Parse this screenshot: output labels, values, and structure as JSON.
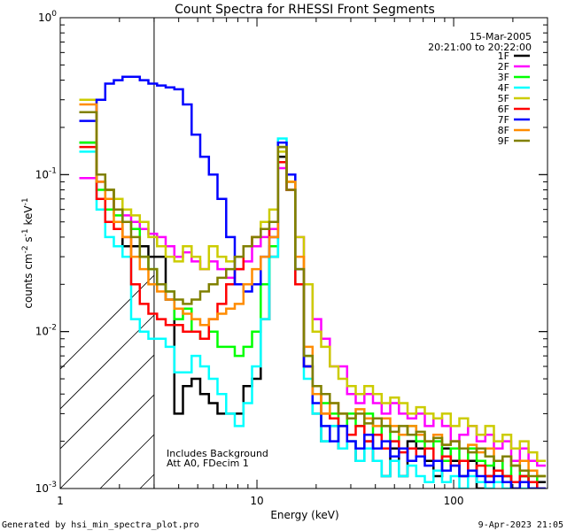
{
  "chart_data": {
    "type": "line",
    "title": "Count Spectra for RHESSI Front Segments",
    "xlabel": "Energy (keV)",
    "ylabel_parts": [
      "counts cm",
      "-2",
      " s",
      "-1",
      " keV",
      "-1"
    ],
    "x_scale": "log",
    "y_scale": "log",
    "xlim": [
      1,
      300
    ],
    "ylim": [
      0.001,
      1
    ],
    "x_ticks": [
      {
        "value": 1,
        "label": "1"
      },
      {
        "value": 10,
        "label": "10"
      },
      {
        "value": 100,
        "label": "100"
      }
    ],
    "y_ticks": [
      {
        "value": 0.001,
        "base": "10",
        "exp": "-3"
      },
      {
        "value": 0.01,
        "base": "10",
        "exp": "-2"
      },
      {
        "value": 0.1,
        "base": "10",
        "exp": "-1"
      },
      {
        "value": 1,
        "base": "10",
        "exp": "0"
      }
    ],
    "date_label": "15-Mar-2005",
    "time_label": "20:21:00 to 20:22:00",
    "note_lines": [
      "Includes Background",
      "Att A0, FDecim 1"
    ],
    "excluded_region_max_kev": 3,
    "series": [
      {
        "name": "1F",
        "color": "#000000",
        "values": [
          0.16,
          0.16,
          0.09,
          0.08,
          0.06,
          0.035,
          0.035,
          0.035,
          0.03,
          0.03,
          0.016,
          0.003,
          0.0045,
          0.005,
          0.004,
          0.0035,
          0.003,
          0.003,
          0.003,
          0.0045,
          0.005,
          0.012,
          0.03,
          0.13,
          0.09,
          0.02,
          0.006,
          0.003,
          0.002,
          0.0025,
          0.0018,
          0.002,
          0.0015,
          0.002,
          0.0015,
          0.0012,
          0.0018,
          0.0012,
          0.002,
          0.0018,
          0.0015,
          0.0012,
          0.0018,
          0.0015,
          0.0012,
          0.0015,
          0.001,
          0.0012,
          0.0015,
          0.0012,
          0.001,
          0.0012,
          0.001,
          0.0011
        ]
      },
      {
        "name": "2F",
        "color": "#ff00ff",
        "values": [
          0.095,
          0.095,
          0.09,
          0.07,
          0.06,
          0.055,
          0.05,
          0.045,
          0.042,
          0.04,
          0.035,
          0.03,
          0.032,
          0.028,
          0.025,
          0.028,
          0.025,
          0.022,
          0.025,
          0.028,
          0.035,
          0.04,
          0.045,
          0.11,
          0.08,
          0.04,
          0.02,
          0.012,
          0.009,
          0.006,
          0.006,
          0.004,
          0.0035,
          0.004,
          0.0035,
          0.003,
          0.0035,
          0.003,
          0.0028,
          0.003,
          0.0025,
          0.0028,
          0.0025,
          0.002,
          0.0022,
          0.0025,
          0.002,
          0.0022,
          0.0018,
          0.002,
          0.0015,
          0.0018,
          0.0015,
          0.0014
        ]
      },
      {
        "name": "3F",
        "color": "#00ff00",
        "values": [
          0.16,
          0.16,
          0.08,
          0.06,
          0.055,
          0.05,
          0.045,
          0.03,
          0.025,
          0.02,
          0.018,
          0.012,
          0.014,
          0.01,
          0.009,
          0.01,
          0.008,
          0.008,
          0.007,
          0.008,
          0.01,
          0.02,
          0.035,
          0.15,
          0.09,
          0.02,
          0.007,
          0.004,
          0.0035,
          0.003,
          0.0025,
          0.003,
          0.0025,
          0.003,
          0.0022,
          0.0025,
          0.002,
          0.0022,
          0.0025,
          0.002,
          0.0018,
          0.002,
          0.0015,
          0.0018,
          0.0015,
          0.0018,
          0.0015,
          0.0014,
          0.0015,
          0.0012,
          0.0014,
          0.0012,
          0.0011,
          0.0012
        ]
      },
      {
        "name": "4F",
        "color": "#00ffff",
        "values": [
          0.14,
          0.14,
          0.06,
          0.04,
          0.035,
          0.03,
          0.012,
          0.01,
          0.009,
          0.009,
          0.008,
          0.0055,
          0.0055,
          0.007,
          0.006,
          0.005,
          0.004,
          0.003,
          0.0025,
          0.0035,
          0.006,
          0.012,
          0.03,
          0.17,
          0.1,
          0.02,
          0.005,
          0.003,
          0.002,
          0.0025,
          0.0018,
          0.002,
          0.0015,
          0.0018,
          0.0015,
          0.0012,
          0.0015,
          0.0012,
          0.0014,
          0.0012,
          0.0011,
          0.0013,
          0.0011,
          0.0012,
          0.001,
          0.0012,
          0.0011,
          0.001,
          0.0011,
          0.001,
          0.0011,
          0.001,
          0.001,
          0.001
        ]
      },
      {
        "name": "5F",
        "color": "#cccc00",
        "values": [
          0.3,
          0.3,
          0.1,
          0.08,
          0.07,
          0.06,
          0.055,
          0.05,
          0.04,
          0.035,
          0.03,
          0.028,
          0.035,
          0.03,
          0.025,
          0.035,
          0.03,
          0.028,
          0.03,
          0.035,
          0.04,
          0.05,
          0.06,
          0.14,
          0.09,
          0.04,
          0.02,
          0.01,
          0.008,
          0.006,
          0.005,
          0.0045,
          0.004,
          0.0045,
          0.004,
          0.0035,
          0.0038,
          0.0035,
          0.003,
          0.0033,
          0.003,
          0.0028,
          0.003,
          0.0025,
          0.0028,
          0.0025,
          0.0022,
          0.0025,
          0.002,
          0.0022,
          0.0018,
          0.002,
          0.0017,
          0.0015
        ]
      },
      {
        "name": "6F",
        "color": "#ff0000",
        "values": [
          0.15,
          0.15,
          0.07,
          0.05,
          0.045,
          0.04,
          0.02,
          0.015,
          0.013,
          0.012,
          0.011,
          0.011,
          0.01,
          0.01,
          0.009,
          0.012,
          0.015,
          0.02,
          0.025,
          0.035,
          0.04,
          0.045,
          0.04,
          0.12,
          0.08,
          0.02,
          0.006,
          0.004,
          0.003,
          0.0028,
          0.0025,
          0.0022,
          0.0025,
          0.002,
          0.0022,
          0.0018,
          0.002,
          0.0017,
          0.0018,
          0.0016,
          0.0018,
          0.0015,
          0.0016,
          0.0014,
          0.0015,
          0.0013,
          0.0014,
          0.0012,
          0.0013,
          0.0012,
          0.0011,
          0.0012,
          0.0011,
          0.001
        ]
      },
      {
        "name": "7F",
        "color": "#0000ff",
        "values": [
          0.22,
          0.22,
          0.3,
          0.38,
          0.4,
          0.42,
          0.42,
          0.4,
          0.38,
          0.37,
          0.36,
          0.35,
          0.28,
          0.18,
          0.13,
          0.1,
          0.07,
          0.04,
          0.02,
          0.018,
          0.02,
          0.03,
          0.04,
          0.16,
          0.1,
          0.025,
          0.006,
          0.0035,
          0.0025,
          0.002,
          0.0025,
          0.002,
          0.0018,
          0.0022,
          0.0018,
          0.002,
          0.0016,
          0.0018,
          0.0015,
          0.0016,
          0.0014,
          0.0015,
          0.0013,
          0.0014,
          0.0012,
          0.0013,
          0.0012,
          0.0011,
          0.0012,
          0.0011,
          0.001,
          0.0011,
          0.001,
          0.001
        ]
      },
      {
        "name": "8F",
        "color": "#ff8c00",
        "values": [
          0.28,
          0.28,
          0.09,
          0.07,
          0.05,
          0.04,
          0.03,
          0.025,
          0.02,
          0.018,
          0.016,
          0.014,
          0.013,
          0.012,
          0.011,
          0.012,
          0.013,
          0.014,
          0.015,
          0.02,
          0.025,
          0.03,
          0.04,
          0.15,
          0.09,
          0.03,
          0.008,
          0.004,
          0.003,
          0.0035,
          0.003,
          0.0028,
          0.0032,
          0.0028,
          0.0025,
          0.0028,
          0.0025,
          0.0022,
          0.0025,
          0.0022,
          0.002,
          0.0022,
          0.0019,
          0.002,
          0.0018,
          0.0019,
          0.0017,
          0.0018,
          0.0015,
          0.0016,
          0.0014,
          0.0015,
          0.0013,
          0.0012
        ]
      },
      {
        "name": "9F",
        "color": "#808000",
        "values": [
          0.25,
          0.25,
          0.1,
          0.08,
          0.06,
          0.05,
          0.04,
          0.03,
          0.025,
          0.02,
          0.018,
          0.016,
          0.015,
          0.016,
          0.018,
          0.02,
          0.022,
          0.025,
          0.03,
          0.035,
          0.04,
          0.045,
          0.05,
          0.15,
          0.08,
          0.025,
          0.007,
          0.0045,
          0.004,
          0.0035,
          0.003,
          0.0028,
          0.003,
          0.0026,
          0.0028,
          0.0025,
          0.0023,
          0.0025,
          0.0022,
          0.0023,
          0.002,
          0.0021,
          0.0019,
          0.002,
          0.0018,
          0.0017,
          0.0018,
          0.0016,
          0.0015,
          0.0016,
          0.0014,
          0.0013,
          0.0012,
          0.0012
        ]
      }
    ]
  },
  "footer": {
    "generator": "Generated by hsi_min_spectra_plot.pro",
    "timestamp": "9-Apr-2023 21:05"
  }
}
